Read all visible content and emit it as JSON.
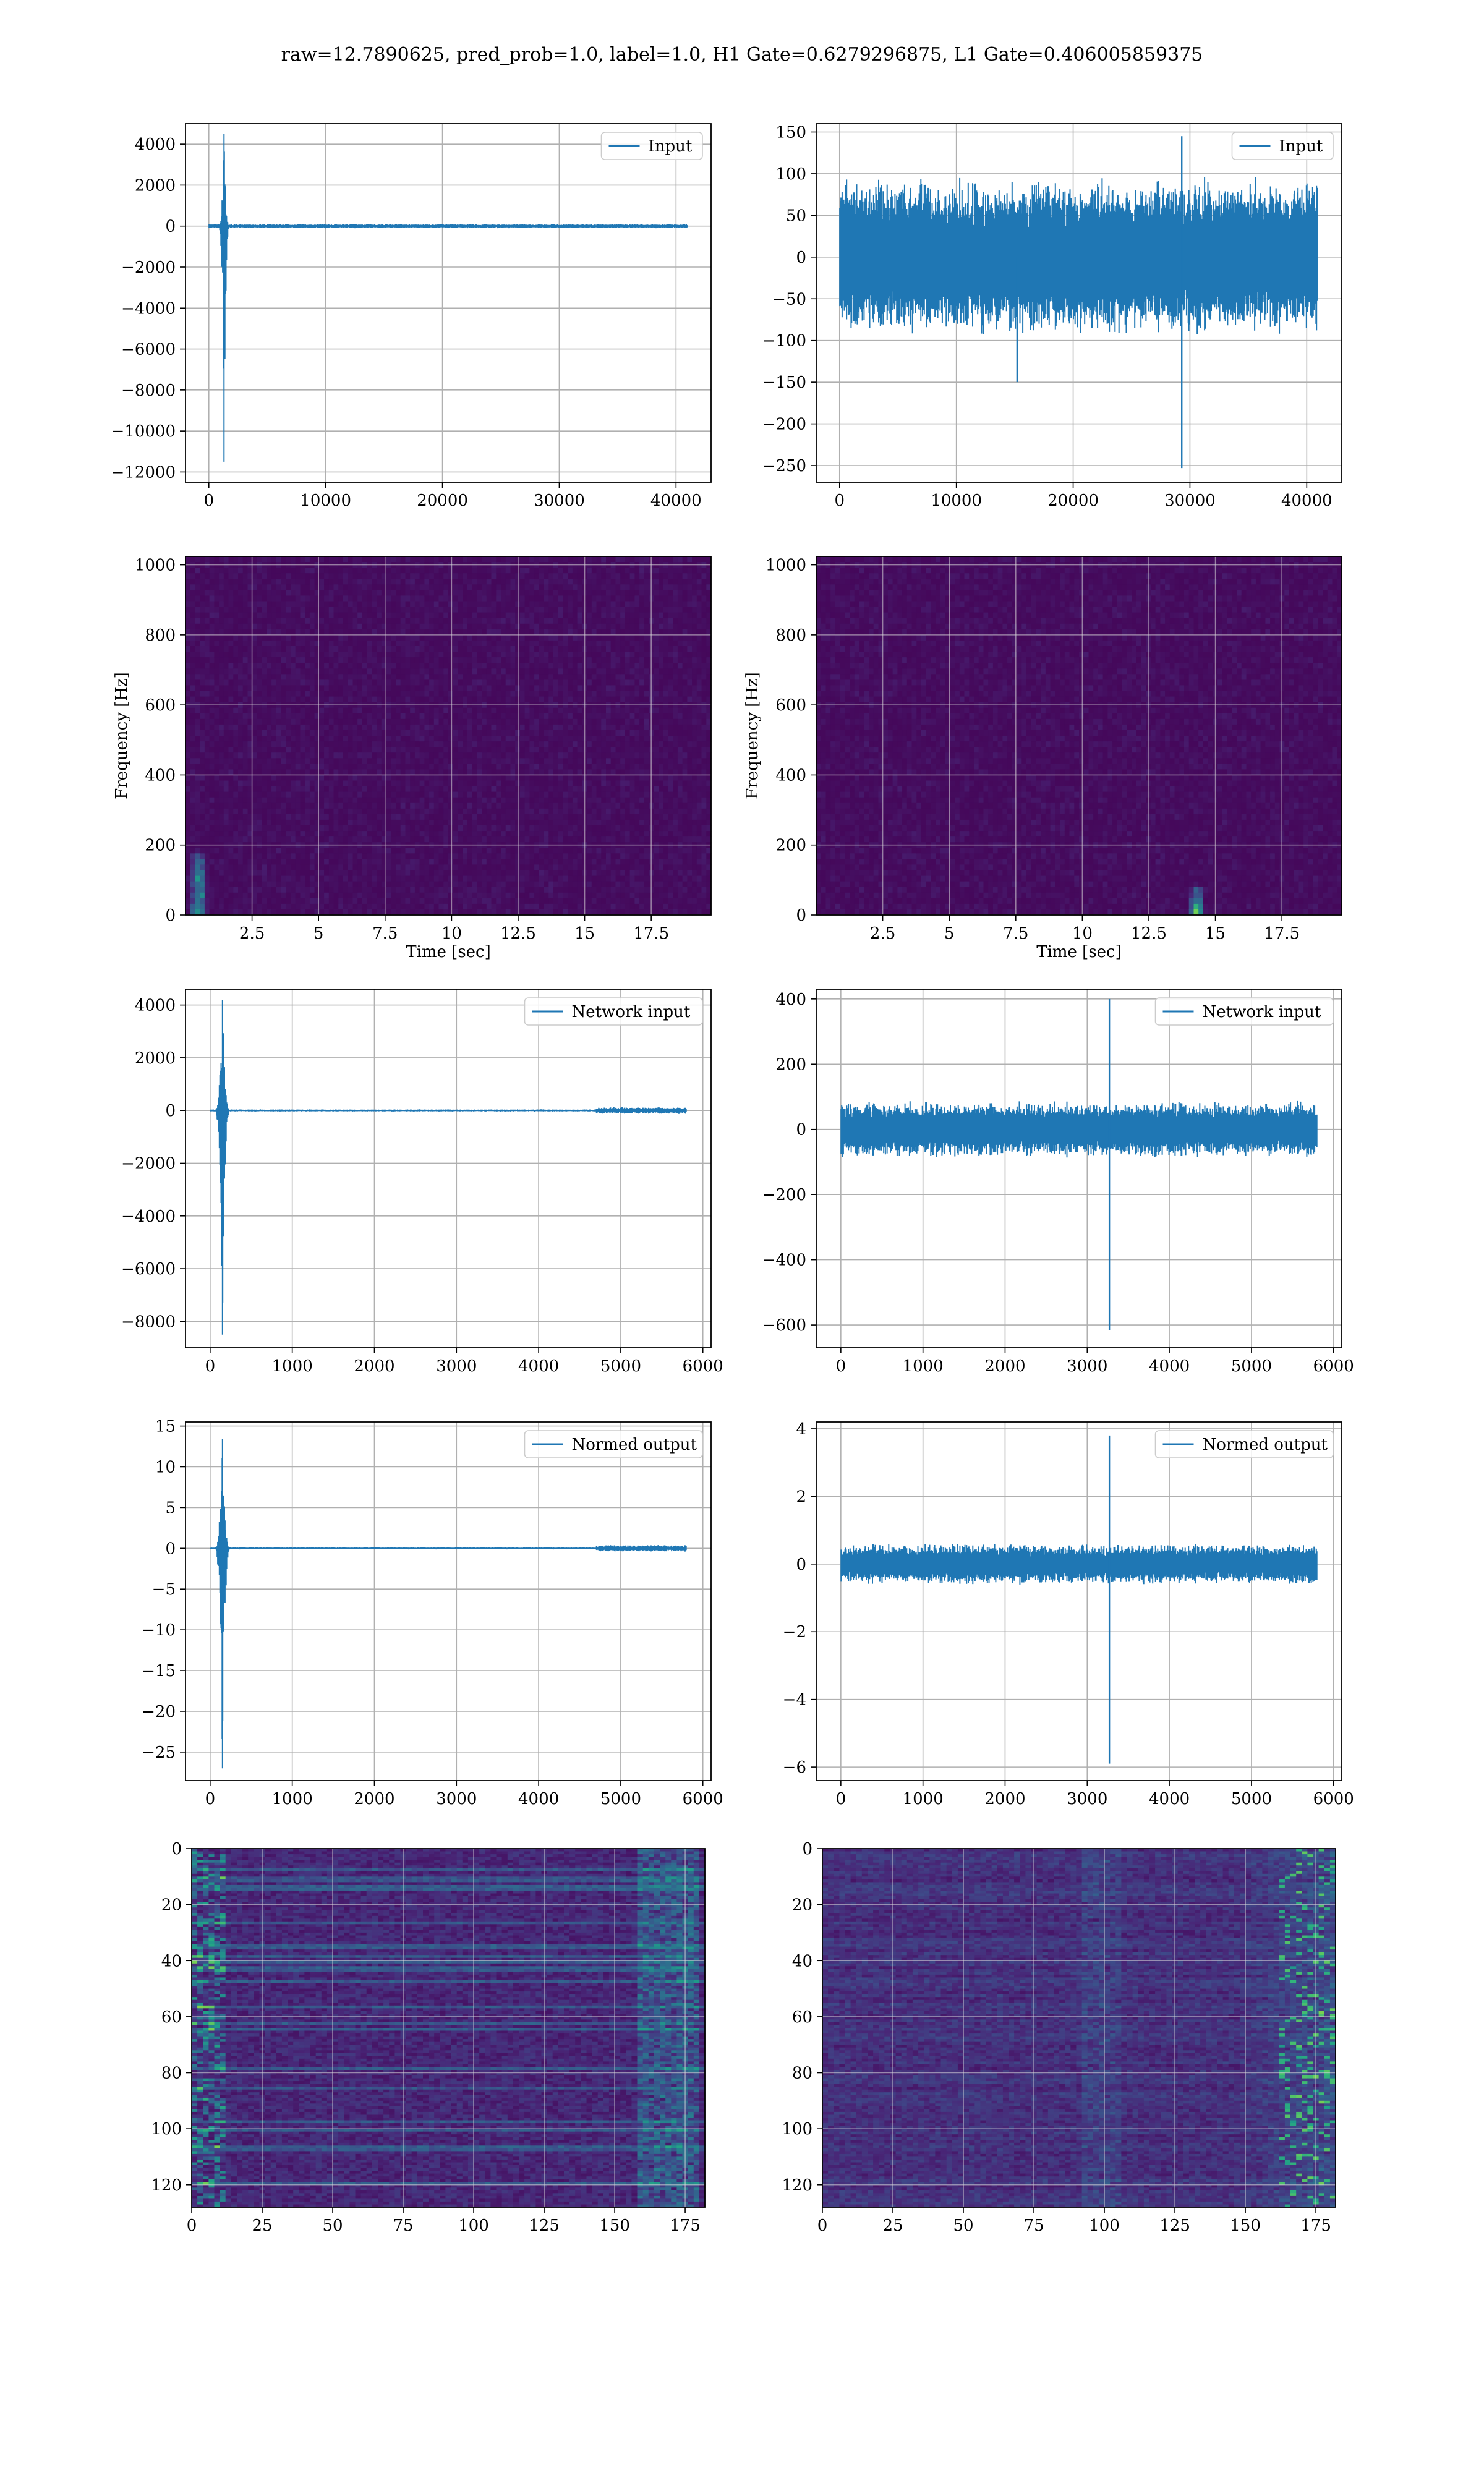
{
  "figure": {
    "suptitle": "raw=12.7890625, pred_prob=1.0, label=1.0, H1 Gate=0.6279296875, L1 Gate=0.406005859375"
  },
  "colors": {
    "line": "#1f77b4",
    "viridis_low": "#440154",
    "viridis_mid": "#21918c",
    "viridis_high": "#fde725",
    "grid": "#b0b0b0"
  },
  "chart_data": [
    {
      "id": "h1-input",
      "type": "line",
      "panel": "row1-left",
      "legend": "Input",
      "legend_loc": "upper right",
      "xlim": [
        -2000,
        43000
      ],
      "ylim": [
        -12500,
        5000
      ],
      "xticks": [
        0,
        10000,
        20000,
        30000,
        40000
      ],
      "yticks": [
        -12000,
        -10000,
        -8000,
        -6000,
        -4000,
        -2000,
        0,
        2000,
        4000
      ],
      "signal": {
        "n": 40960,
        "noise_amp": 60,
        "burst_center": 1300,
        "burst_width": 500,
        "min": -11500,
        "max": 4500
      }
    },
    {
      "id": "l1-input",
      "type": "line",
      "panel": "row1-right",
      "legend": "Input",
      "legend_loc": "upper right",
      "xlim": [
        -2000,
        43000
      ],
      "ylim": [
        -270,
        160
      ],
      "xticks": [
        0,
        10000,
        20000,
        30000,
        40000
      ],
      "yticks": [
        -250,
        -200,
        -150,
        -100,
        -50,
        0,
        50,
        100,
        150
      ],
      "signal": {
        "n": 40960,
        "noise_amp": 55,
        "spikes": [
          [
            15200,
            -150
          ],
          [
            29300,
            -253
          ],
          [
            29300,
            145
          ]
        ],
        "min": -253,
        "max": 145
      }
    },
    {
      "id": "h1-spectrogram",
      "type": "heatmap",
      "panel": "row2-left",
      "xlabel": "Time [sec]",
      "ylabel": "Frequency [Hz]",
      "xlim": [
        0,
        19.75
      ],
      "ylim": [
        0,
        1024
      ],
      "xticks": [
        2.5,
        5.0,
        7.5,
        10.0,
        12.5,
        15.0,
        17.5
      ],
      "yticks": [
        0,
        200,
        400,
        600,
        800,
        1000
      ],
      "hotspot": {
        "t": 0.5,
        "f_max": 180
      }
    },
    {
      "id": "l1-spectrogram",
      "type": "heatmap",
      "panel": "row2-right",
      "xlabel": "Time [sec]",
      "ylabel": "Frequency [Hz]",
      "xlim": [
        0,
        19.75
      ],
      "ylim": [
        0,
        1024
      ],
      "xticks": [
        2.5,
        5.0,
        7.5,
        10.0,
        12.5,
        15.0,
        17.5
      ],
      "yticks": [
        0,
        200,
        400,
        600,
        800,
        1000
      ],
      "hotspot": {
        "t": 14.3,
        "f_max": 80
      }
    },
    {
      "id": "h1-network-input",
      "type": "line",
      "panel": "row3-left",
      "legend": "Network input",
      "legend_loc": "upper right",
      "xlim": [
        -300,
        6100
      ],
      "ylim": [
        -9000,
        4600
      ],
      "xticks": [
        0,
        1000,
        2000,
        3000,
        4000,
        5000,
        6000
      ],
      "yticks": [
        -8000,
        -6000,
        -4000,
        -2000,
        0,
        2000,
        4000
      ],
      "signal": {
        "n": 5800,
        "noise_amp": 25,
        "burst_center": 150,
        "burst_width": 100,
        "late_noise_from": 4700,
        "late_noise_amp": 80,
        "min": -8500,
        "max": 4200
      }
    },
    {
      "id": "l1-network-input",
      "type": "line",
      "panel": "row3-right",
      "legend": "Network input",
      "legend_loc": "upper right",
      "xlim": [
        -300,
        6100
      ],
      "ylim": [
        -670,
        430
      ],
      "xticks": [
        0,
        1000,
        2000,
        3000,
        4000,
        5000,
        6000
      ],
      "yticks": [
        -600,
        -400,
        -200,
        0,
        200,
        400
      ],
      "signal": {
        "n": 5800,
        "noise_amp": 50,
        "spikes": [
          [
            3270,
            400
          ],
          [
            3270,
            -615
          ]
        ],
        "min": -615,
        "max": 400
      }
    },
    {
      "id": "h1-normed-output",
      "type": "line",
      "panel": "row4-left",
      "legend": "Normed output",
      "legend_loc": "upper right",
      "xlim": [
        -300,
        6100
      ],
      "ylim": [
        -28.5,
        15.5
      ],
      "xticks": [
        0,
        1000,
        2000,
        3000,
        4000,
        5000,
        6000
      ],
      "yticks": [
        -25,
        -20,
        -15,
        -10,
        -5,
        0,
        5,
        10,
        15
      ],
      "signal": {
        "n": 5800,
        "noise_amp": 0.08,
        "burst_center": 150,
        "burst_width": 100,
        "late_noise_from": 4700,
        "late_noise_amp": 0.25,
        "min": -27,
        "max": 13.4
      }
    },
    {
      "id": "l1-normed-output",
      "type": "line",
      "panel": "row4-right",
      "legend": "Normed output",
      "legend_loc": "upper right",
      "xlim": [
        -300,
        6100
      ],
      "ylim": [
        -6.4,
        4.2
      ],
      "xticks": [
        0,
        1000,
        2000,
        3000,
        4000,
        5000,
        6000
      ],
      "yticks": [
        -6,
        -4,
        -2,
        0,
        2,
        4
      ],
      "signal": {
        "n": 5800,
        "noise_amp": 0.35,
        "spikes": [
          [
            3270,
            3.8
          ],
          [
            3270,
            -5.9
          ]
        ],
        "min": -5.9,
        "max": 3.8
      }
    },
    {
      "id": "h1-feature-map",
      "type": "heatmap",
      "panel": "row5-left",
      "xlim": [
        0,
        182
      ],
      "ylim": [
        128,
        0
      ],
      "xticks": [
        0,
        25,
        50,
        75,
        100,
        125,
        150,
        175
      ],
      "yticks": [
        0,
        20,
        40,
        60,
        80,
        100,
        120
      ],
      "rows": 128,
      "cols": 182
    },
    {
      "id": "l1-feature-map",
      "type": "heatmap",
      "panel": "row5-right",
      "xlim": [
        0,
        182
      ],
      "ylim": [
        128,
        0
      ],
      "xticks": [
        0,
        25,
        50,
        75,
        100,
        125,
        150,
        175
      ],
      "yticks": [
        0,
        20,
        40,
        60,
        80,
        100,
        120
      ],
      "rows": 128,
      "cols": 182
    }
  ]
}
